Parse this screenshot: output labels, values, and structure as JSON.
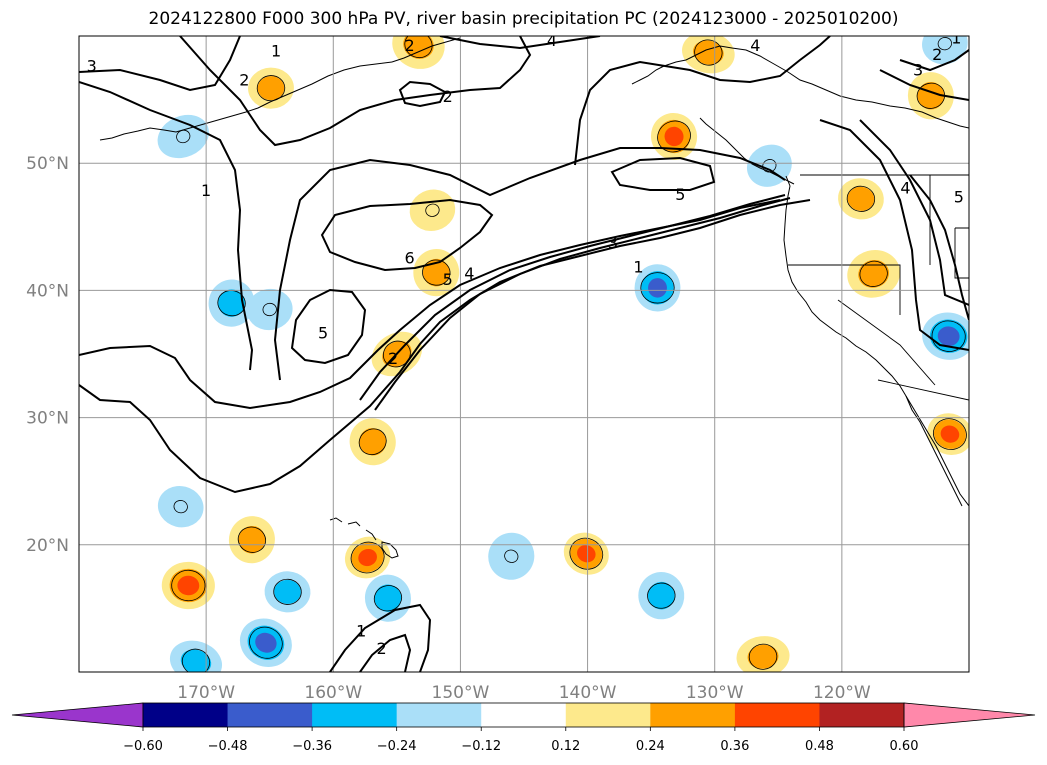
{
  "title": "2024122800 F000 300 hPa PV, river basin precipitation PC (2024123000 - 2025010200)",
  "map": {
    "projection": "equirectangular",
    "lon_range": [
      -180,
      -110
    ],
    "lat_range": [
      10,
      60
    ],
    "gridlines": true,
    "lat_ticks": [
      {
        "lat": 50,
        "label": "50°N"
      },
      {
        "lat": 40,
        "label": "40°N"
      },
      {
        "lat": 30,
        "label": "30°N"
      },
      {
        "lat": 20,
        "label": "20°N"
      }
    ],
    "lon_ticks": [
      {
        "lon": -170,
        "label": "170°W"
      },
      {
        "lon": -160,
        "label": "160°W"
      },
      {
        "lon": -150,
        "label": "150°W"
      },
      {
        "lon": -140,
        "label": "140°W"
      },
      {
        "lon": -130,
        "label": "130°W"
      },
      {
        "lon": -120,
        "label": "120°W"
      }
    ],
    "pv_contour_labels": [
      {
        "text": "3",
        "lon": -179,
        "lat": 57.6
      },
      {
        "text": "2",
        "lon": -167,
        "lat": 56.5
      },
      {
        "text": "1",
        "lon": -164.5,
        "lat": 58.8
      },
      {
        "text": "2",
        "lon": -154,
        "lat": 59.2
      },
      {
        "text": "2",
        "lon": -151,
        "lat": 55.2
      },
      {
        "text": "4",
        "lon": -142.8,
        "lat": 59.6
      },
      {
        "text": "1",
        "lon": -170,
        "lat": 47.8
      },
      {
        "text": "6",
        "lon": -154,
        "lat": 42.5
      },
      {
        "text": "5",
        "lon": -151,
        "lat": 40.8
      },
      {
        "text": "4",
        "lon": -149.3,
        "lat": 41.3
      },
      {
        "text": "3",
        "lon": -138,
        "lat": 43.7
      },
      {
        "text": "1",
        "lon": -136,
        "lat": 41.8
      },
      {
        "text": "5",
        "lon": -132.7,
        "lat": 47.5
      },
      {
        "text": "5",
        "lon": -160.8,
        "lat": 36.6
      },
      {
        "text": "2",
        "lon": -155.3,
        "lat": 34.6
      },
      {
        "text": "4",
        "lon": -126.8,
        "lat": 59.2
      },
      {
        "text": "3",
        "lon": -114,
        "lat": 57.3
      },
      {
        "text": "2",
        "lon": -112.5,
        "lat": 58.5
      },
      {
        "text": "1",
        "lon": -111,
        "lat": 59.8
      },
      {
        "text": "4",
        "lon": -115,
        "lat": 48
      },
      {
        "text": "5",
        "lon": -110.8,
        "lat": 47.3
      },
      {
        "text": "1",
        "lon": -157.8,
        "lat": 13.2
      },
      {
        "text": "2",
        "lon": -156.2,
        "lat": 11.8
      }
    ],
    "pc_anomalies": [
      {
        "lon": -155,
        "lat": 35,
        "value": 0.3
      },
      {
        "lon": -151.9,
        "lat": 41.4,
        "value": 0.24
      },
      {
        "lon": -152.2,
        "lat": 46.3,
        "value": 0.12
      },
      {
        "lon": -153.3,
        "lat": 59.3,
        "value": 0.24
      },
      {
        "lon": -164.9,
        "lat": 55.9,
        "value": 0.24
      },
      {
        "lon": -133.2,
        "lat": 52.1,
        "value": 0.36
      },
      {
        "lon": -130.5,
        "lat": 58.7,
        "value": 0.24
      },
      {
        "lon": -113,
        "lat": 55.3,
        "value": 0.24
      },
      {
        "lon": -140.1,
        "lat": 19.3,
        "value": 0.36
      },
      {
        "lon": -171.4,
        "lat": 16.8,
        "value": 0.36
      },
      {
        "lon": -157.3,
        "lat": 19,
        "value": 0.36
      },
      {
        "lon": -166.4,
        "lat": 20.4,
        "value": 0.24
      },
      {
        "lon": -126.2,
        "lat": 11.2,
        "value": 0.24
      },
      {
        "lon": -156.9,
        "lat": 28.1,
        "value": 0.24
      },
      {
        "lon": -118.5,
        "lat": 47.2,
        "value": 0.24
      },
      {
        "lon": -117.5,
        "lat": 41.3,
        "value": 0.24
      },
      {
        "lon": -111.5,
        "lat": 28.7,
        "value": 0.42
      },
      {
        "lon": -134.5,
        "lat": 40.2,
        "value": -0.42
      },
      {
        "lon": -171.8,
        "lat": 52.1,
        "value": -0.24
      },
      {
        "lon": -168,
        "lat": 39,
        "value": -0.36
      },
      {
        "lon": -165,
        "lat": 38.5,
        "value": -0.24
      },
      {
        "lon": -165.3,
        "lat": 12.3,
        "value": -0.48
      },
      {
        "lon": -163.6,
        "lat": 16.3,
        "value": -0.36
      },
      {
        "lon": -155.7,
        "lat": 15.8,
        "value": -0.36
      },
      {
        "lon": -170.8,
        "lat": 10.8,
        "value": -0.36
      },
      {
        "lon": -134.2,
        "lat": 16,
        "value": -0.36
      },
      {
        "lon": -125.7,
        "lat": 49.8,
        "value": -0.24
      },
      {
        "lon": -111.6,
        "lat": 36.4,
        "value": -0.48
      },
      {
        "lon": -111.9,
        "lat": 59.4,
        "value": -0.24
      },
      {
        "lon": -146,
        "lat": 19.1,
        "value": -0.24
      },
      {
        "lon": -140.1,
        "lat": 56.9,
        "value": -0.12
      },
      {
        "lon": -170.8,
        "lat": 41.9,
        "value": -0.12
      },
      {
        "lon": -172,
        "lat": 23,
        "value": -0.24
      }
    ],
    "boundaries_style": "coastlines_and_states"
  },
  "colorbar": {
    "orientation": "horizontal",
    "extend": "both",
    "tick_labels": [
      "−0.60",
      "−0.48",
      "−0.36",
      "−0.24",
      "−0.12",
      "0.12",
      "0.24",
      "0.36",
      "0.48",
      "0.60"
    ],
    "bins": [
      {
        "color": "#9a35cc"
      },
      {
        "color": "#000088"
      },
      {
        "color": "#3a5ccc"
      },
      {
        "color": "#00bdf6"
      },
      {
        "color": "#aadff8"
      },
      {
        "color": "#ffffff"
      },
      {
        "color": "#fde98c"
      },
      {
        "color": "#ffa000"
      },
      {
        "color": "#ff4400"
      },
      {
        "color": "#b22222"
      },
      {
        "color": "#ff88aa"
      }
    ]
  }
}
